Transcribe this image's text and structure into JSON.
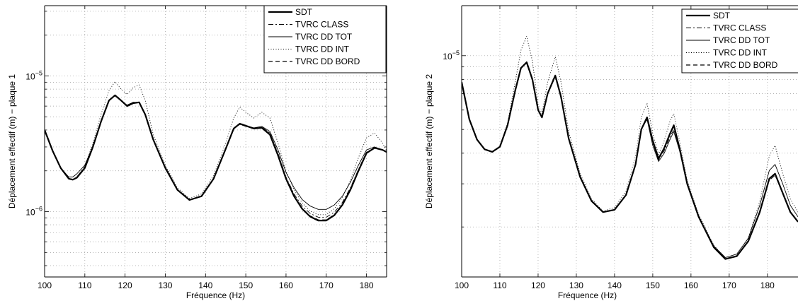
{
  "chart_data": [
    {
      "type": "line",
      "xlabel": "Fréquence (Hz)",
      "ylabel": "Déplacement effectif (m) − plaque 1",
      "y_scale": "log",
      "xlim": [
        100,
        185
      ],
      "ylim": [
        3.3e-07,
        3.3e-05
      ],
      "x_ticks": [
        "100",
        "110",
        "120",
        "130",
        "140",
        "150",
        "160",
        "170",
        "180"
      ],
      "y_tick_labels": [
        {
          "base": "10",
          "exp": "−6",
          "value": 1e-06
        },
        {
          "base": "10",
          "exp": "−5",
          "value": 1e-05
        }
      ],
      "grid": true,
      "legend_position": "top-right",
      "x": [
        100,
        102,
        104,
        106,
        107,
        108,
        110,
        112,
        114,
        116,
        117.5,
        119,
        120.5,
        122,
        123.5,
        125,
        127,
        130,
        133,
        136,
        139,
        142,
        145,
        147,
        148.5,
        150,
        152,
        154,
        156,
        158,
        160,
        162,
        164,
        166,
        168,
        170,
        172,
        174,
        176,
        178,
        180,
        182,
        184,
        185
      ],
      "series": [
        {
          "name": "SDT",
          "values": [
            4e-06,
            2.8e-06,
            2.1e-06,
            1.75e-06,
            1.72e-06,
            1.78e-06,
            2.1e-06,
            3e-06,
            4.6e-06,
            6.6e-06,
            7.2e-06,
            6.6e-06,
            6e-06,
            6.3e-06,
            6.4e-06,
            5.2e-06,
            3.4e-06,
            2.1e-06,
            1.45e-06,
            1.22e-06,
            1.3e-06,
            1.75e-06,
            2.9e-06,
            4.1e-06,
            4.45e-06,
            4.3e-06,
            4.1e-06,
            4.15e-06,
            3.7e-06,
            2.6e-06,
            1.75e-06,
            1.3e-06,
            1.05e-06,
            9.2e-07,
            8.6e-07,
            8.6e-07,
            9.4e-07,
            1.12e-06,
            1.45e-06,
            2e-06,
            2.7e-06,
            2.95e-06,
            2.85e-06,
            2.75e-06
          ]
        },
        {
          "name": "TVRC CLASS",
          "values": [
            4e-06,
            2.8e-06,
            2.1e-06,
            1.76e-06,
            1.73e-06,
            1.8e-06,
            2.15e-06,
            3.05e-06,
            4.6e-06,
            6.6e-06,
            7.2e-06,
            6.6e-06,
            6.1e-06,
            6.4e-06,
            6.4e-06,
            5.2e-06,
            3.4e-06,
            2.1e-06,
            1.45e-06,
            1.22e-06,
            1.3e-06,
            1.75e-06,
            2.9e-06,
            4.1e-06,
            4.4e-06,
            4.25e-06,
            4.1e-06,
            4.2e-06,
            3.8e-06,
            2.7e-06,
            1.8e-06,
            1.35e-06,
            1.1e-06,
            9.7e-07,
            9.1e-07,
            9.1e-07,
            9.9e-07,
            1.17e-06,
            1.5e-06,
            2.05e-06,
            2.75e-06,
            2.95e-06,
            2.85e-06,
            2.75e-06
          ]
        },
        {
          "name": "TVRC DD TOT",
          "values": [
            4e-06,
            2.8e-06,
            2.1e-06,
            1.8e-06,
            1.8e-06,
            1.9e-06,
            2.2e-06,
            3.05e-06,
            4.6e-06,
            6.6e-06,
            7.2e-06,
            6.6e-06,
            6.1e-06,
            6.4e-06,
            6.4e-06,
            5.2e-06,
            3.4e-06,
            2.1e-06,
            1.45e-06,
            1.22e-06,
            1.3e-06,
            1.75e-06,
            2.9e-06,
            4.1e-06,
            4.4e-06,
            4.3e-06,
            4.15e-06,
            4.25e-06,
            3.9e-06,
            2.85e-06,
            1.95e-06,
            1.5e-06,
            1.23e-06,
            1.1e-06,
            1.04e-06,
            1.04e-06,
            1.12e-06,
            1.3e-06,
            1.65e-06,
            2.2e-06,
            2.85e-06,
            3e-06,
            2.85e-06,
            2.75e-06
          ]
        },
        {
          "name": "TVRC DD INT",
          "values": [
            4e-06,
            2.8e-06,
            2.1e-06,
            1.76e-06,
            1.73e-06,
            1.8e-06,
            2.15e-06,
            3.2e-06,
            5.2e-06,
            7.8e-06,
            9.1e-06,
            8e-06,
            7.3e-06,
            8.2e-06,
            8.6e-06,
            6.6e-06,
            3.7e-06,
            2.2e-06,
            1.5e-06,
            1.25e-06,
            1.35e-06,
            1.85e-06,
            3.2e-06,
            4.9e-06,
            5.9e-06,
            5.4e-06,
            4.9e-06,
            5.4e-06,
            4.9e-06,
            3.2e-06,
            2e-06,
            1.45e-06,
            1.16e-06,
            1.01e-06,
            9.5e-07,
            9.5e-07,
            1.05e-06,
            1.27e-06,
            1.7e-06,
            2.5e-06,
            3.5e-06,
            3.8e-06,
            3.2e-06,
            2.8e-06
          ]
        },
        {
          "name": "TVRC DD BORD",
          "values": [
            4e-06,
            2.8e-06,
            2.1e-06,
            1.75e-06,
            1.72e-06,
            1.78e-06,
            2.1e-06,
            3e-06,
            4.6e-06,
            6.6e-06,
            7.2e-06,
            6.6e-06,
            6e-06,
            6.3e-06,
            6.4e-06,
            5.2e-06,
            3.4e-06,
            2.1e-06,
            1.45e-06,
            1.22e-06,
            1.3e-06,
            1.75e-06,
            2.9e-06,
            4.1e-06,
            4.45e-06,
            4.3e-06,
            4.1e-06,
            4.15e-06,
            3.75e-06,
            2.65e-06,
            1.75e-06,
            1.3e-06,
            1.06e-06,
            9.3e-07,
            8.7e-07,
            8.7e-07,
            9.5e-07,
            1.13e-06,
            1.47e-06,
            2.02e-06,
            2.72e-06,
            2.95e-06,
            2.85e-06,
            2.75e-06
          ]
        }
      ]
    },
    {
      "type": "line",
      "xlabel": "Fréquence (Hz)",
      "ylabel": "Déplacement effectif (m) − plaque 2",
      "y_scale": "log",
      "xlim": [
        100,
        188
      ],
      "ylim": [
        1.25e-06,
        1.6e-05
      ],
      "x_ticks": [
        "100",
        "110",
        "120",
        "130",
        "140",
        "150",
        "160",
        "170",
        "180"
      ],
      "y_tick_labels": [
        {
          "base": "10",
          "exp": "−5",
          "value": 1e-05
        }
      ],
      "grid": true,
      "legend_position": "top-right",
      "x": [
        100,
        102,
        104,
        106,
        108,
        110,
        112,
        114,
        115.5,
        117,
        118.5,
        120,
        121,
        122.5,
        124.5,
        126,
        128,
        131,
        134,
        137,
        140,
        143,
        145.5,
        147,
        148.5,
        150,
        151.5,
        153,
        154.5,
        155.5,
        157,
        159,
        162,
        166,
        169,
        172,
        175,
        178,
        180.5,
        182,
        184,
        186,
        188
      ],
      "series": [
        {
          "name": "SDT",
          "values": [
            7.8e-06,
            5.5e-06,
            4.55e-06,
            4.15e-06,
            4.05e-06,
            4.25e-06,
            5.2e-06,
            7.2e-06,
            8.9e-06,
            9.4e-06,
            8e-06,
            6e-06,
            5.6e-06,
            7e-06,
            8.3e-06,
            6.8e-06,
            4.6e-06,
            3.2e-06,
            2.55e-06,
            2.3e-06,
            2.35e-06,
            2.7e-06,
            3.6e-06,
            5e-06,
            5.6e-06,
            4.5e-06,
            3.8e-06,
            4.2e-06,
            4.8e-06,
            5.2e-06,
            4.2e-06,
            3e-06,
            2.2e-06,
            1.65e-06,
            1.48e-06,
            1.52e-06,
            1.75e-06,
            2.3e-06,
            3.15e-06,
            3.3e-06,
            2.75e-06,
            2.3e-06,
            2.1e-06
          ]
        },
        {
          "name": "TVRC CLASS",
          "values": [
            7.8e-06,
            5.5e-06,
            4.55e-06,
            4.15e-06,
            4.05e-06,
            4.25e-06,
            5.2e-06,
            7.2e-06,
            8.9e-06,
            9.3e-06,
            7.9e-06,
            6e-06,
            5.6e-06,
            7e-06,
            8.2e-06,
            6.7e-06,
            4.6e-06,
            3.2e-06,
            2.55e-06,
            2.3e-06,
            2.35e-06,
            2.7e-06,
            3.6e-06,
            5e-06,
            5.5e-06,
            4.4e-06,
            3.75e-06,
            4.1e-06,
            4.65e-06,
            5e-06,
            4.15e-06,
            3e-06,
            2.2e-06,
            1.65e-06,
            1.48e-06,
            1.52e-06,
            1.75e-06,
            2.3e-06,
            3.1e-06,
            3.25e-06,
            2.75e-06,
            2.3e-06,
            2.1e-06
          ]
        },
        {
          "name": "TVRC DD TOT",
          "values": [
            7.8e-06,
            5.5e-06,
            4.55e-06,
            4.15e-06,
            4.05e-06,
            4.25e-06,
            5.2e-06,
            7.2e-06,
            8.9e-06,
            9.4e-06,
            8e-06,
            6e-06,
            5.6e-06,
            7e-06,
            8.3e-06,
            6.8e-06,
            4.6e-06,
            3.2e-06,
            2.55e-06,
            2.3e-06,
            2.35e-06,
            2.7e-06,
            3.6e-06,
            5e-06,
            5.5e-06,
            4.3e-06,
            3.7e-06,
            4e-06,
            4.55e-06,
            4.9e-06,
            4.1e-06,
            3e-06,
            2.2e-06,
            1.67e-06,
            1.5e-06,
            1.55e-06,
            1.8e-06,
            2.45e-06,
            3.4e-06,
            3.6e-06,
            3e-06,
            2.45e-06,
            2.2e-06
          ]
        },
        {
          "name": "TVRC DD INT",
          "values": [
            7.8e-06,
            5.5e-06,
            4.55e-06,
            4.15e-06,
            4.05e-06,
            4.25e-06,
            5.3e-06,
            7.8e-06,
            1.05e-05,
            1.2e-05,
            9.5e-06,
            6.3e-06,
            5.8e-06,
            7.8e-06,
            9.9e-06,
            7.8e-06,
            4.9e-06,
            3.3e-06,
            2.6e-06,
            2.32e-06,
            2.4e-06,
            2.8e-06,
            3.9e-06,
            5.6e-06,
            6.4e-06,
            4.8e-06,
            3.95e-06,
            4.5e-06,
            5.4e-06,
            5.8e-06,
            4.5e-06,
            3.1e-06,
            2.25e-06,
            1.68e-06,
            1.5e-06,
            1.55e-06,
            1.8e-06,
            2.55e-06,
            3.9e-06,
            4.3e-06,
            3.3e-06,
            2.6e-06,
            2.3e-06
          ]
        },
        {
          "name": "TVRC DD BORD",
          "values": [
            7.8e-06,
            5.5e-06,
            4.55e-06,
            4.15e-06,
            4.05e-06,
            4.25e-06,
            5.2e-06,
            7.2e-06,
            8.9e-06,
            9.4e-06,
            8e-06,
            6e-06,
            5.6e-06,
            7e-06,
            8.3e-06,
            6.8e-06,
            4.6e-06,
            3.2e-06,
            2.55e-06,
            2.3e-06,
            2.35e-06,
            2.7e-06,
            3.6e-06,
            5e-06,
            5.6e-06,
            4.5e-06,
            3.8e-06,
            4.2e-06,
            4.8e-06,
            5.2e-06,
            4.2e-06,
            3e-06,
            2.2e-06,
            1.65e-06,
            1.48e-06,
            1.52e-06,
            1.75e-06,
            2.3e-06,
            3.15e-06,
            3.3e-06,
            2.75e-06,
            2.3e-06,
            2.1e-06
          ]
        }
      ]
    }
  ]
}
